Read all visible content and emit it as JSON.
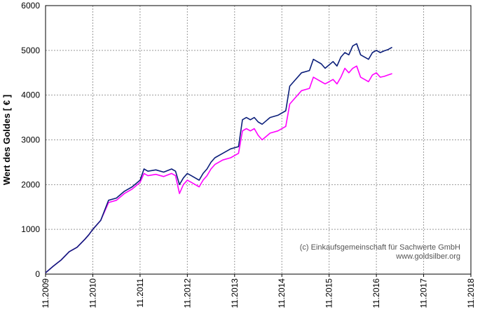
{
  "chart_data": {
    "type": "line",
    "title": "",
    "xlabel": "",
    "ylabel": "Wert des Goldes [ € ]",
    "ylim": [
      0,
      6000
    ],
    "yticks": [
      "0",
      "1000",
      "2000",
      "3000",
      "4000",
      "5000",
      "6000"
    ],
    "xlim": [
      "11.2009",
      "11.2018"
    ],
    "xticks": [
      "11.2009",
      "11.2010",
      "11.2011",
      "11.2012",
      "11.2013",
      "11.2014",
      "11.2015",
      "11.2016",
      "11.2017",
      "11.2018"
    ],
    "grid": true,
    "legend": "none",
    "credit_lines": [
      "(c) Einkaufsgemeinschaft für Sachwerte GmbH",
      "www.goldsilber.org"
    ],
    "series": [
      {
        "color": "#0b1e7a",
        "x": [
          "11.2009",
          "01.2010",
          "03.2010",
          "05.2010",
          "07.2010",
          "09.2010",
          "10.2010",
          "11.2010",
          "01.2011",
          "03.2011",
          "05.2011",
          "07.2011",
          "09.2011",
          "11.2011",
          "12.2011",
          "01.2012",
          "03.2012",
          "05.2012",
          "07.2012",
          "08.2012",
          "09.2012",
          "10.2012",
          "11.2012",
          "12.2012",
          "01.2013",
          "02.2013",
          "03.2013",
          "04.2013",
          "05.2013",
          "06.2013",
          "08.2013",
          "10.2013",
          "12.2013",
          "01.2014",
          "02.2014",
          "03.2014",
          "04.2014",
          "05.2014",
          "06.2014",
          "08.2014",
          "10.2014",
          "12.2014",
          "01.2015",
          "02.2015",
          "04.2015",
          "06.2015",
          "07.2015",
          "08.2015",
          "09.2015",
          "10.2015",
          "12.2015",
          "01.2016",
          "02.2016",
          "03.2016",
          "04.2016",
          "05.2016",
          "06.2016",
          "07.2016",
          "08.2016",
          "09.2016",
          "10.2016",
          "11.2016",
          "12.2016",
          "01.2017",
          "02.2017",
          "03.2017"
        ],
        "values": [
          30,
          180,
          320,
          500,
          600,
          780,
          880,
          1000,
          1200,
          1650,
          1700,
          1850,
          1950,
          2100,
          2350,
          2300,
          2330,
          2280,
          2350,
          2300,
          2000,
          2150,
          2250,
          2200,
          2150,
          2100,
          2250,
          2350,
          2500,
          2600,
          2700,
          2800,
          2850,
          3450,
          3500,
          3450,
          3500,
          3400,
          3350,
          3500,
          3550,
          3650,
          4200,
          4300,
          4500,
          4550,
          4800,
          4750,
          4700,
          4600,
          4750,
          4650,
          4850,
          4950,
          4900,
          5100,
          5150,
          4900,
          4850,
          4800,
          4950,
          5000,
          4950,
          4990,
          5020,
          5070
        ]
      },
      {
        "color": "#ff00ff",
        "x": [
          "11.2009",
          "01.2010",
          "03.2010",
          "05.2010",
          "07.2010",
          "09.2010",
          "10.2010",
          "11.2010",
          "01.2011",
          "03.2011",
          "05.2011",
          "07.2011",
          "09.2011",
          "11.2011",
          "12.2011",
          "01.2012",
          "03.2012",
          "05.2012",
          "07.2012",
          "08.2012",
          "09.2012",
          "10.2012",
          "11.2012",
          "12.2012",
          "01.2013",
          "02.2013",
          "03.2013",
          "04.2013",
          "05.2013",
          "06.2013",
          "08.2013",
          "10.2013",
          "12.2013",
          "01.2014",
          "02.2014",
          "03.2014",
          "04.2014",
          "05.2014",
          "06.2014",
          "08.2014",
          "10.2014",
          "12.2014",
          "01.2015",
          "02.2015",
          "04.2015",
          "06.2015",
          "07.2015",
          "08.2015",
          "09.2015",
          "10.2015",
          "12.2015",
          "01.2016",
          "02.2016",
          "03.2016",
          "04.2016",
          "05.2016",
          "06.2016",
          "07.2016",
          "08.2016",
          "09.2016",
          "10.2016",
          "11.2016",
          "12.2016",
          "01.2017",
          "02.2017",
          "03.2017"
        ],
        "values": [
          30,
          180,
          320,
          500,
          600,
          780,
          880,
          1000,
          1200,
          1600,
          1650,
          1800,
          1900,
          2050,
          2250,
          2200,
          2230,
          2180,
          2250,
          2200,
          1800,
          2000,
          2100,
          2050,
          2000,
          1950,
          2100,
          2200,
          2350,
          2450,
          2550,
          2600,
          2700,
          3200,
          3250,
          3200,
          3250,
          3100,
          3000,
          3150,
          3200,
          3300,
          3800,
          3900,
          4100,
          4150,
          4400,
          4350,
          4300,
          4250,
          4350,
          4250,
          4400,
          4600,
          4500,
          4600,
          4650,
          4400,
          4350,
          4300,
          4450,
          4500,
          4400,
          4420,
          4450,
          4480
        ]
      }
    ]
  }
}
